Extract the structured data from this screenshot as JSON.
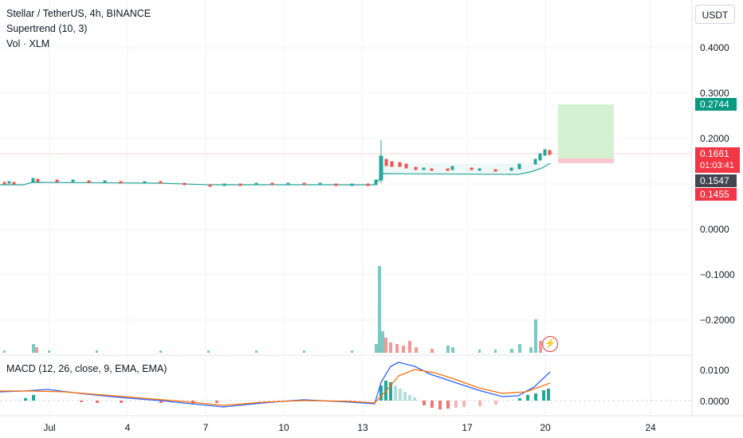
{
  "legend": {
    "symbol": "Stellar / TetherUS, 4h, BINANCE",
    "supertrend": "Supertrend (10, 3)",
    "volume": "Vol · XLM"
  },
  "macd_legend": "MACD (12, 26, close, 9, EMA, EMA)",
  "currency_button": "USDT",
  "price_axis": [
    "0.4000",
    "0.3000",
    "0.2000",
    "0.0000",
    "−0.1000",
    "−0.2000"
  ],
  "macd_axis": [
    "0.0100",
    "0.0000"
  ],
  "time_axis": [
    "Jul",
    "4",
    "7",
    "10",
    "13",
    "17",
    "20",
    "24"
  ],
  "price_tags": {
    "target": "0.2744",
    "last": "0.1661",
    "countdown": "01:03:41",
    "supertrend": "0.1547",
    "stop": "0.1455"
  },
  "colors": {
    "up": "#26a69a",
    "down": "#ef5350",
    "target_tag": "#089981",
    "stop_tag": "#f23645",
    "supertrend_tag": "#434651",
    "macd_line": "#2962ff",
    "signal_line": "#ff6d00"
  },
  "icons": {
    "flash": "flash-icon"
  }
}
